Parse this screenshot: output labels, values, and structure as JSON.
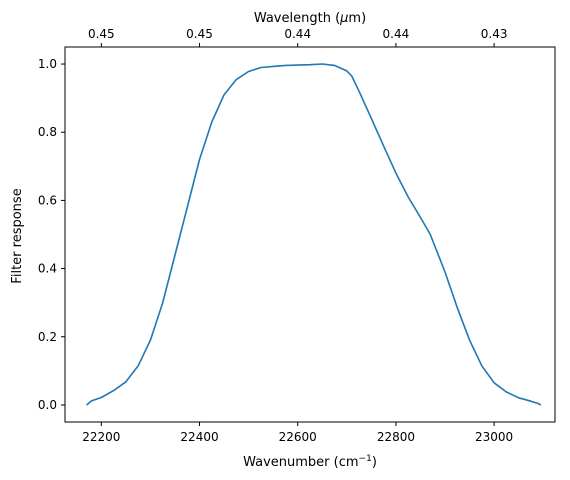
{
  "chart_data": {
    "type": "line",
    "xlabel": "Wavenumber (cm",
    "xlabel_sup": "−1",
    "xlabel_close": ")",
    "ylabel": "Filter response",
    "top_xlabel": "Wavelength (",
    "top_xlabel_mu": "μ",
    "top_xlabel_unit": "m)",
    "xlim": [
      22126,
      23124
    ],
    "ylim": [
      -0.05,
      1.05
    ],
    "x_ticks": [
      22200,
      22400,
      22600,
      22800,
      23000
    ],
    "y_ticks": [
      0.0,
      0.2,
      0.4,
      0.6,
      0.8,
      1.0
    ],
    "y_tick_labels": [
      "0.0",
      "0.2",
      "0.4",
      "0.6",
      "0.8",
      "1.0"
    ],
    "top_ticks": [
      {
        "x": 22200,
        "label": "0.45"
      },
      {
        "x": 22400,
        "label": "0.45"
      },
      {
        "x": 22600,
        "label": "0.44"
      },
      {
        "x": 22800,
        "label": "0.44"
      },
      {
        "x": 23000,
        "label": "0.43"
      }
    ],
    "grid": false,
    "line_color": "#1f77b4",
    "series": [
      {
        "x": [
          22170,
          22180,
          22200,
          22225,
          22250,
          22275,
          22300,
          22325,
          22350,
          22375,
          22400,
          22425,
          22450,
          22475,
          22500,
          22525,
          22550,
          22575,
          22600,
          22625,
          22650,
          22675,
          22700,
          22710,
          22725,
          22750,
          22775,
          22800,
          22825,
          22850,
          22870,
          22900,
          22925,
          22950,
          22975,
          23000,
          23025,
          23050,
          23075,
          23090,
          23095
        ],
        "y": [
          0.0,
          0.012,
          0.022,
          0.042,
          0.068,
          0.115,
          0.19,
          0.3,
          0.44,
          0.58,
          0.72,
          0.83,
          0.91,
          0.955,
          0.978,
          0.99,
          0.993,
          0.996,
          0.997,
          0.998,
          1.0,
          0.996,
          0.98,
          0.965,
          0.92,
          0.84,
          0.76,
          0.68,
          0.61,
          0.55,
          0.5,
          0.39,
          0.285,
          0.19,
          0.115,
          0.065,
          0.038,
          0.021,
          0.011,
          0.004,
          0.0
        ]
      }
    ]
  }
}
